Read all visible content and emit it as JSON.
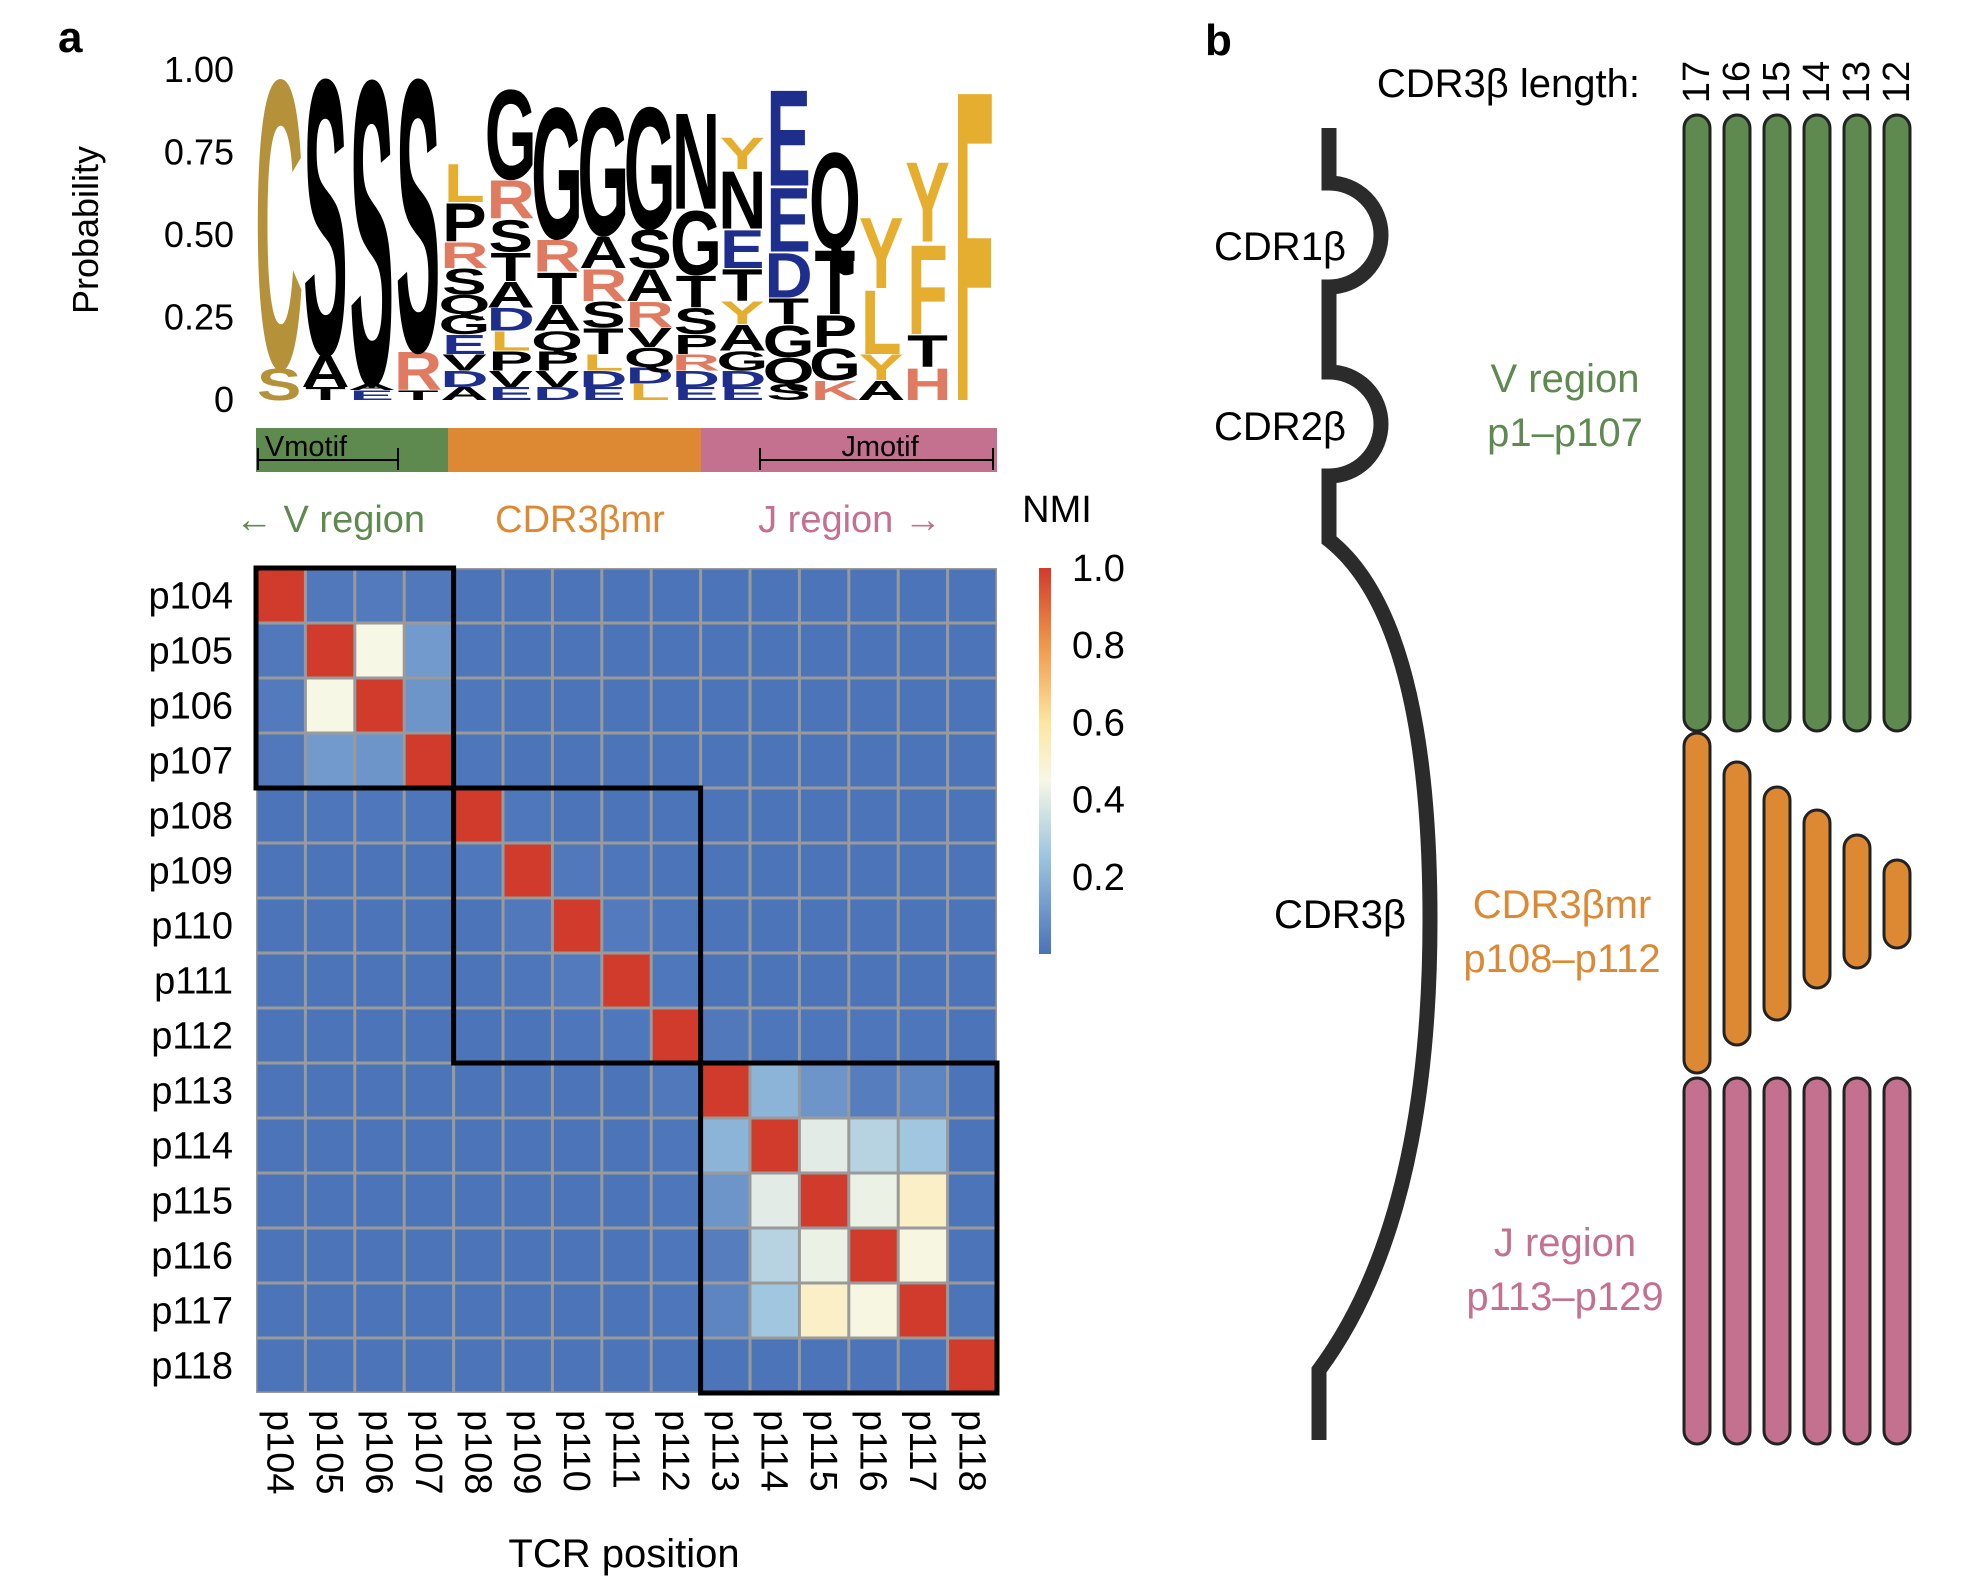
{
  "panel_a": {
    "label": "a",
    "logo": {
      "ylabel": "Probability",
      "yticks": [
        "1.00",
        "0.75",
        "0.50",
        "0.25",
        "0"
      ],
      "yvalues": [
        1.0,
        0.75,
        0.5,
        0.25,
        0
      ],
      "columns": [
        [
          {
            "l": "S",
            "p": 0.1
          },
          {
            "l": "C",
            "p": 0.9
          }
        ],
        [
          {
            "l": "T",
            "p": 0.04
          },
          {
            "l": "A",
            "p": 0.1
          },
          {
            "l": "S",
            "p": 0.86
          }
        ],
        [
          {
            "l": "E",
            "p": 0.03
          },
          {
            "l": "A",
            "p": 0.02
          },
          {
            "l": "S",
            "p": 0.95
          }
        ],
        [
          {
            "l": "T",
            "p": 0.03
          },
          {
            "l": "R",
            "p": 0.12
          },
          {
            "l": "S",
            "p": 0.85
          }
        ],
        [
          {
            "l": "A",
            "p": 0.04
          },
          {
            "l": "D",
            "p": 0.05
          },
          {
            "l": "V",
            "p": 0.05
          },
          {
            "l": "E",
            "p": 0.06
          },
          {
            "l": "G",
            "p": 0.06
          },
          {
            "l": "Q",
            "p": 0.06
          },
          {
            "l": "S",
            "p": 0.08
          },
          {
            "l": "R",
            "p": 0.08
          },
          {
            "l": "P",
            "p": 0.12
          },
          {
            "l": "L",
            "p": 0.12
          }
        ],
        [
          {
            "l": "E",
            "p": 0.04
          },
          {
            "l": "V",
            "p": 0.05
          },
          {
            "l": "P",
            "p": 0.06
          },
          {
            "l": "L",
            "p": 0.06
          },
          {
            "l": "D",
            "p": 0.07
          },
          {
            "l": "A",
            "p": 0.08
          },
          {
            "l": "T",
            "p": 0.09
          },
          {
            "l": "S",
            "p": 0.1
          },
          {
            "l": "R",
            "p": 0.12
          },
          {
            "l": "G",
            "p": 0.28
          }
        ],
        [
          {
            "l": "D",
            "p": 0.04
          },
          {
            "l": "V",
            "p": 0.05
          },
          {
            "l": "P",
            "p": 0.06
          },
          {
            "l": "Q",
            "p": 0.06
          },
          {
            "l": "A",
            "p": 0.08
          },
          {
            "l": "T",
            "p": 0.1
          },
          {
            "l": "R",
            "p": 0.1
          },
          {
            "l": "G",
            "p": 0.41
          }
        ],
        [
          {
            "l": "E",
            "p": 0.04
          },
          {
            "l": "D",
            "p": 0.05
          },
          {
            "l": "L",
            "p": 0.05
          },
          {
            "l": "T",
            "p": 0.08
          },
          {
            "l": "S",
            "p": 0.08
          },
          {
            "l": "R",
            "p": 0.1
          },
          {
            "l": "A",
            "p": 0.1
          },
          {
            "l": "G",
            "p": 0.4
          }
        ],
        [
          {
            "l": "L",
            "p": 0.05
          },
          {
            "l": "D",
            "p": 0.05
          },
          {
            "l": "Q",
            "p": 0.06
          },
          {
            "l": "V",
            "p": 0.06
          },
          {
            "l": "R",
            "p": 0.08
          },
          {
            "l": "A",
            "p": 0.1
          },
          {
            "l": "S",
            "p": 0.12
          },
          {
            "l": "G",
            "p": 0.38
          }
        ],
        [
          {
            "l": "E",
            "p": 0.04
          },
          {
            "l": "D",
            "p": 0.05
          },
          {
            "l": "R",
            "p": 0.05
          },
          {
            "l": "P",
            "p": 0.06
          },
          {
            "l": "S",
            "p": 0.08
          },
          {
            "l": "T",
            "p": 0.1
          },
          {
            "l": "G",
            "p": 0.2
          },
          {
            "l": "N",
            "p": 0.3
          }
        ],
        [
          {
            "l": "E",
            "p": 0.04
          },
          {
            "l": "D",
            "p": 0.05
          },
          {
            "l": "G",
            "p": 0.06
          },
          {
            "l": "A",
            "p": 0.08
          },
          {
            "l": "Y",
            "p": 0.07
          },
          {
            "l": "T",
            "p": 0.1
          },
          {
            "l": "E",
            "p": 0.12
          },
          {
            "l": "N",
            "p": 0.18
          },
          {
            "l": "Y",
            "p": 0.1
          }
        ],
        [
          {
            "l": "S",
            "p": 0.05
          },
          {
            "l": "Q",
            "p": 0.08
          },
          {
            "l": "G",
            "p": 0.1
          },
          {
            "l": "T",
            "p": 0.08
          },
          {
            "l": "D",
            "p": 0.14
          },
          {
            "l": "E",
            "p": 0.2
          },
          {
            "l": "E",
            "p": 0.3
          }
        ],
        [
          {
            "l": "K",
            "p": 0.06
          },
          {
            "l": "G",
            "p": 0.1
          },
          {
            "l": "P",
            "p": 0.1
          },
          {
            "l": "T",
            "p": 0.2
          },
          {
            "l": "Q",
            "p": 0.3
          }
        ],
        [
          {
            "l": "A",
            "p": 0.06
          },
          {
            "l": "Y",
            "p": 0.08
          },
          {
            "l": "L",
            "p": 0.2
          },
          {
            "l": "Y",
            "p": 0.22
          }
        ],
        [
          {
            "l": "H",
            "p": 0.1
          },
          {
            "l": "T",
            "p": 0.1
          },
          {
            "l": "F",
            "p": 0.28
          },
          {
            "l": "Y",
            "p": 0.25
          }
        ],
        [
          {
            "l": "F",
            "p": 0.97
          }
        ]
      ]
    },
    "region_bar": {
      "vmotif": "Vmotif",
      "jmotif": "Jmotif"
    },
    "region_labels": {
      "v": "← V region",
      "cdr": "CDR3βmr",
      "j": "J region →"
    },
    "heatmap": {
      "positions": [
        "p104",
        "p105",
        "p106",
        "p107",
        "p108",
        "p109",
        "p110",
        "p111",
        "p112",
        "p113",
        "p114",
        "p115",
        "p116",
        "p117",
        "p118"
      ],
      "matrix": [
        [
          1.0,
          0.05,
          0.07,
          0.05,
          0.02,
          0.02,
          0.02,
          0.02,
          0.02,
          0.02,
          0.02,
          0.02,
          0.02,
          0.02,
          0.02
        ],
        [
          0.05,
          1.0,
          0.42,
          0.17,
          0.03,
          0.02,
          0.02,
          0.02,
          0.02,
          0.02,
          0.02,
          0.02,
          0.02,
          0.02,
          0.02
        ],
        [
          0.07,
          0.42,
          1.0,
          0.16,
          0.04,
          0.02,
          0.02,
          0.02,
          0.02,
          0.02,
          0.02,
          0.02,
          0.02,
          0.02,
          0.02
        ],
        [
          0.05,
          0.17,
          0.16,
          1.0,
          0.03,
          0.02,
          0.02,
          0.02,
          0.02,
          0.02,
          0.02,
          0.02,
          0.02,
          0.02,
          0.02
        ],
        [
          0.02,
          0.03,
          0.04,
          0.03,
          1.0,
          0.04,
          0.02,
          0.02,
          0.02,
          0.02,
          0.02,
          0.02,
          0.02,
          0.02,
          0.02
        ],
        [
          0.02,
          0.02,
          0.02,
          0.02,
          0.04,
          1.0,
          0.05,
          0.03,
          0.02,
          0.02,
          0.02,
          0.02,
          0.02,
          0.02,
          0.02
        ],
        [
          0.02,
          0.02,
          0.02,
          0.02,
          0.02,
          0.05,
          1.0,
          0.07,
          0.03,
          0.02,
          0.02,
          0.02,
          0.02,
          0.02,
          0.02
        ],
        [
          0.02,
          0.02,
          0.02,
          0.02,
          0.02,
          0.03,
          0.07,
          1.0,
          0.04,
          0.02,
          0.02,
          0.02,
          0.02,
          0.02,
          0.02
        ],
        [
          0.02,
          0.02,
          0.02,
          0.02,
          0.02,
          0.02,
          0.03,
          0.04,
          1.0,
          0.05,
          0.03,
          0.03,
          0.03,
          0.03,
          0.02
        ],
        [
          0.02,
          0.02,
          0.02,
          0.02,
          0.02,
          0.02,
          0.02,
          0.02,
          0.05,
          1.0,
          0.22,
          0.16,
          0.1,
          0.13,
          0.02
        ],
        [
          0.02,
          0.02,
          0.02,
          0.02,
          0.02,
          0.02,
          0.02,
          0.02,
          0.03,
          0.22,
          1.0,
          0.38,
          0.3,
          0.26,
          0.02
        ],
        [
          0.02,
          0.02,
          0.02,
          0.02,
          0.02,
          0.02,
          0.02,
          0.02,
          0.03,
          0.16,
          0.38,
          1.0,
          0.4,
          0.48,
          0.02
        ],
        [
          0.02,
          0.02,
          0.02,
          0.02,
          0.02,
          0.02,
          0.02,
          0.02,
          0.03,
          0.1,
          0.3,
          0.4,
          1.0,
          0.43,
          0.02
        ],
        [
          0.02,
          0.02,
          0.02,
          0.02,
          0.02,
          0.02,
          0.02,
          0.02,
          0.03,
          0.13,
          0.26,
          0.48,
          0.43,
          1.0,
          0.02
        ],
        [
          0.02,
          0.02,
          0.02,
          0.02,
          0.02,
          0.02,
          0.02,
          0.02,
          0.02,
          0.02,
          0.02,
          0.02,
          0.02,
          0.02,
          1.0
        ]
      ],
      "blocks": [
        [
          0,
          3
        ],
        [
          4,
          8
        ],
        [
          9,
          14
        ]
      ],
      "xlabel": "TCR position",
      "colorbar": {
        "title": "NMI",
        "ticks": [
          "1.0",
          "0.8",
          "0.6",
          "0.4",
          "0.2"
        ],
        "tick_values": [
          1.0,
          0.8,
          0.6,
          0.4,
          0.2
        ]
      }
    }
  },
  "panel_b": {
    "label": "b",
    "length_label": "CDR3β length:",
    "lengths": [
      "17",
      "16",
      "15",
      "14",
      "13",
      "12"
    ],
    "cdr_labels": {
      "cdr1": "CDR1β",
      "cdr2": "CDR2β",
      "cdr3": "CDR3β"
    },
    "v_region": {
      "name": "V region",
      "range": "p1–p107"
    },
    "cdr3_region": {
      "name": "CDR3βmr",
      "range": "p108–p112"
    },
    "j_region": {
      "name": "J region",
      "range": "p113–p129"
    }
  },
  "colors": {
    "v": "#5e8a4f",
    "cdr": "#dd8833",
    "j": "#c4708f",
    "aa_black": "#000000",
    "aa_gold": "#b5923a",
    "aa_yellow": "#e6ae2e",
    "aa_red": "#e07a60",
    "aa_blue": "#1e2e8c",
    "aa_tan": "#c08a30"
  }
}
